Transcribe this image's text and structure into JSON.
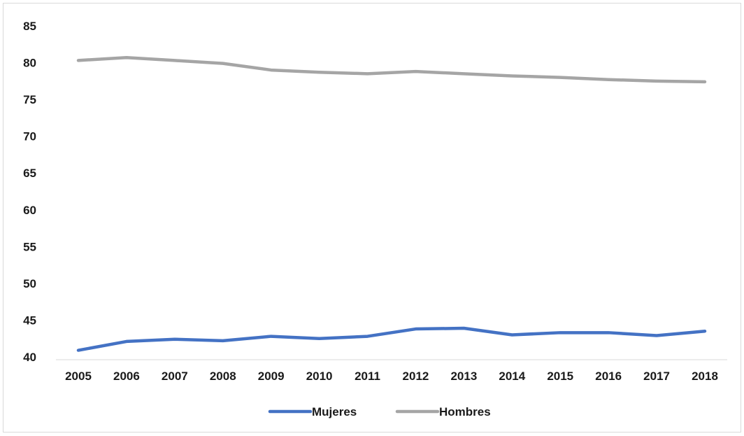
{
  "chart_data": {
    "type": "line",
    "title": "",
    "xlabel": "",
    "ylabel": "",
    "categories": [
      "2005",
      "2006",
      "2007",
      "2008",
      "2009",
      "2010",
      "2011",
      "2012",
      "2013",
      "2014",
      "2015",
      "2016",
      "2017",
      "2018"
    ],
    "yticks": [
      "40",
      "45",
      "50",
      "55",
      "60",
      "65",
      "70",
      "75",
      "80",
      "85"
    ],
    "ylim": [
      40,
      85
    ],
    "grid": false,
    "legend_position": "bottom",
    "series": [
      {
        "name": "Mujeres",
        "color": "#4472c4",
        "values": [
          40.9,
          42.1,
          42.4,
          42.2,
          42.8,
          42.5,
          42.8,
          43.8,
          43.9,
          43.0,
          43.3,
          43.3,
          42.9,
          43.5
        ]
      },
      {
        "name": "Hombres",
        "color": "#a5a5a5",
        "values": [
          80.3,
          80.7,
          80.3,
          79.9,
          79.0,
          78.7,
          78.5,
          78.8,
          78.5,
          78.2,
          78.0,
          77.7,
          77.5,
          77.4
        ]
      }
    ]
  }
}
